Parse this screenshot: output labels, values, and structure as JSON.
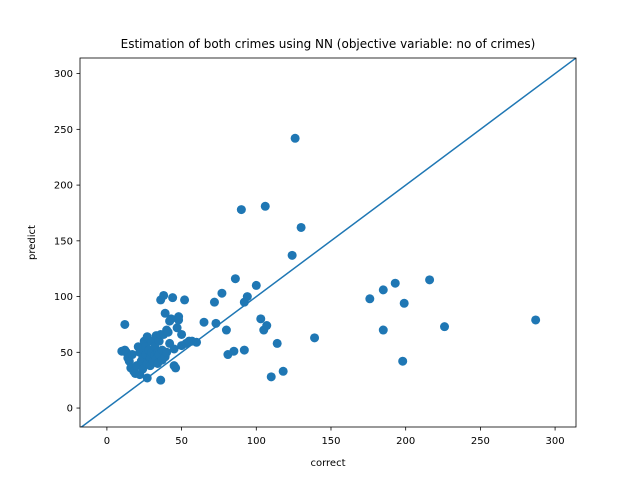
{
  "chart_data": {
    "type": "scatter",
    "title": "Estimation of both crimes using NN (objective variable: no of crimes)",
    "xlabel": "correct",
    "ylabel": "predict",
    "xlim": [
      -18,
      314
    ],
    "ylim": [
      -17,
      314
    ],
    "xticks": [
      0,
      50,
      100,
      150,
      200,
      250,
      300
    ],
    "yticks": [
      0,
      50,
      100,
      150,
      200,
      250,
      300
    ],
    "grid": false,
    "colors": {
      "points": "#1f77b4",
      "line": "#1f77b4"
    },
    "reference_line": {
      "label": "",
      "slope": 1,
      "intercept": 0
    },
    "points": [
      [
        10,
        51
      ],
      [
        12,
        52
      ],
      [
        12,
        75
      ],
      [
        13,
        50
      ],
      [
        14,
        45
      ],
      [
        15,
        42
      ],
      [
        16,
        36
      ],
      [
        17,
        48
      ],
      [
        18,
        33
      ],
      [
        19,
        31
      ],
      [
        20,
        38
      ],
      [
        21,
        55
      ],
      [
        22,
        50
      ],
      [
        22,
        30
      ],
      [
        23,
        42
      ],
      [
        24,
        45
      ],
      [
        24,
        35
      ],
      [
        25,
        60
      ],
      [
        26,
        55
      ],
      [
        26,
        48
      ],
      [
        27,
        64
      ],
      [
        27,
        40
      ],
      [
        27,
        27
      ],
      [
        28,
        52
      ],
      [
        29,
        45
      ],
      [
        29,
        38
      ],
      [
        30,
        50
      ],
      [
        30,
        60
      ],
      [
        31,
        42
      ],
      [
        32,
        55
      ],
      [
        32,
        47
      ],
      [
        33,
        65
      ],
      [
        33,
        44
      ],
      [
        34,
        50
      ],
      [
        34,
        40
      ],
      [
        35,
        60
      ],
      [
        35,
        48
      ],
      [
        36,
        97
      ],
      [
        36,
        66
      ],
      [
        36,
        25
      ],
      [
        37,
        52
      ],
      [
        37,
        43
      ],
      [
        38,
        101
      ],
      [
        38,
        66
      ],
      [
        39,
        46
      ],
      [
        39,
        85
      ],
      [
        40,
        70
      ],
      [
        40,
        50
      ],
      [
        41,
        68
      ],
      [
        42,
        58
      ],
      [
        42,
        78
      ],
      [
        43,
        80
      ],
      [
        44,
        99
      ],
      [
        45,
        53
      ],
      [
        45,
        38
      ],
      [
        46,
        36
      ],
      [
        47,
        72
      ],
      [
        48,
        82
      ],
      [
        48,
        79
      ],
      [
        50,
        56
      ],
      [
        50,
        66
      ],
      [
        52,
        97
      ],
      [
        53,
        58
      ],
      [
        55,
        60
      ],
      [
        57,
        60
      ],
      [
        60,
        59
      ],
      [
        65,
        77
      ],
      [
        72,
        95
      ],
      [
        73,
        76
      ],
      [
        77,
        103
      ],
      [
        80,
        70
      ],
      [
        81,
        48
      ],
      [
        85,
        51
      ],
      [
        86,
        116
      ],
      [
        90,
        178
      ],
      [
        92,
        95
      ],
      [
        92,
        52
      ],
      [
        94,
        100
      ],
      [
        100,
        110
      ],
      [
        103,
        80
      ],
      [
        105,
        70
      ],
      [
        106,
        181
      ],
      [
        107,
        74
      ],
      [
        110,
        28
      ],
      [
        114,
        58
      ],
      [
        118,
        33
      ],
      [
        124,
        137
      ],
      [
        126,
        242
      ],
      [
        130,
        162
      ],
      [
        139,
        63
      ],
      [
        176,
        98
      ],
      [
        185,
        106
      ],
      [
        185,
        70
      ],
      [
        193,
        112
      ],
      [
        198,
        42
      ],
      [
        199,
        94
      ],
      [
        216,
        115
      ],
      [
        226,
        73
      ],
      [
        287,
        79
      ]
    ]
  }
}
